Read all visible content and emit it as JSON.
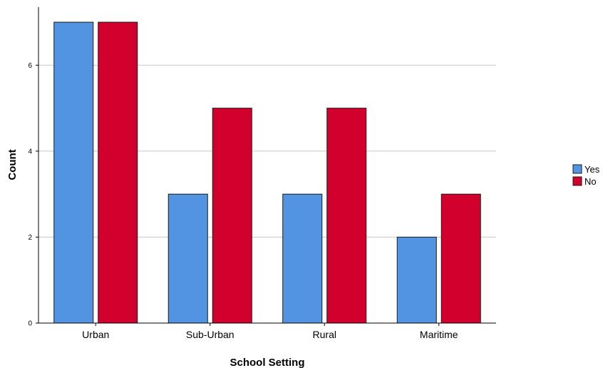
{
  "chart_data": {
    "type": "bar",
    "categories": [
      "Urban",
      "Sub-Urban",
      "Rural",
      "Maritime"
    ],
    "series": [
      {
        "name": "Yes",
        "values": [
          7,
          3,
          3,
          2
        ],
        "color": "#5294e2"
      },
      {
        "name": "No",
        "values": [
          7,
          5,
          5,
          3
        ],
        "color": "#d1002c"
      }
    ],
    "title": "",
    "xlabel": "School Setting",
    "ylabel": "Count",
    "ylim": [
      0,
      7.35
    ],
    "yticks": [
      0,
      2,
      4,
      6
    ],
    "grid": true,
    "legend_position": "right"
  }
}
